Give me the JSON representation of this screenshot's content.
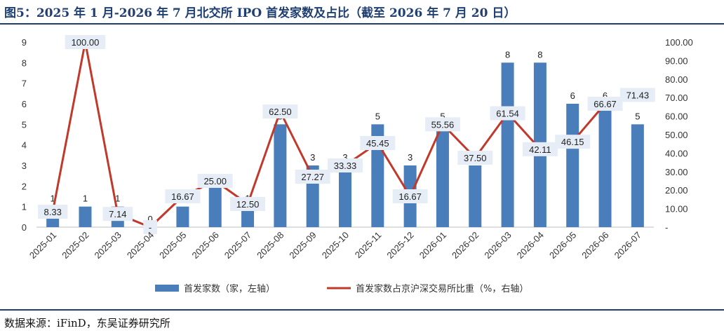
{
  "figure": {
    "title": "图5：2025 年 1 月-2026 年 7 月北交所 IPO 首发家数及占比（截至 2026 年 7 月 20 日）",
    "source": "数据来源：iFinD，东吴证券研究所"
  },
  "colors": {
    "bar": "#4a7ebb",
    "line": "#c0392b",
    "label_bg": "#e6edf6",
    "rule": "#1f3f73"
  },
  "chart_data": {
    "type": "bar+line",
    "title": "",
    "categories": [
      "2025-01",
      "2025-02",
      "2025-03",
      "2025-04",
      "2025-05",
      "2025-06",
      "2025-07",
      "2025-08",
      "2025-09",
      "2025-10",
      "2025-11",
      "2025-12",
      "2026-01",
      "2026-02",
      "2026-03",
      "2026-04",
      "2026-05",
      "2026-06",
      "2026-07"
    ],
    "series": [
      {
        "name": "首发家数（家，左轴）",
        "type": "bar",
        "axis": "left",
        "values": [
          1,
          1,
          1,
          0,
          1,
          2,
          1,
          5,
          3,
          3,
          5,
          3,
          5,
          3,
          8,
          8,
          6,
          6,
          5
        ],
        "labels": [
          "1",
          "1",
          "1",
          "0",
          "1",
          "2",
          "1",
          "5",
          "3",
          "3",
          "5",
          "3",
          "5",
          "3",
          "8",
          "8",
          "6",
          "6",
          "5"
        ]
      },
      {
        "name": "首发家数占京沪深交易所比重（%，右轴）",
        "type": "line",
        "axis": "right",
        "values": [
          8.33,
          100.0,
          7.14,
          0,
          16.67,
          25.0,
          12.5,
          62.5,
          27.27,
          33.33,
          45.45,
          16.67,
          55.56,
          37.5,
          61.54,
          42.11,
          46.15,
          66.67,
          71.43
        ],
        "labels": [
          "8.33",
          "100.00",
          "7.14",
          "-",
          "16.67",
          "25.00",
          "12.50",
          "62.50",
          "27.27",
          "33.33",
          "45.45",
          "16.67",
          "55.56",
          "37.50",
          "61.54",
          "42.11",
          "46.15",
          "66.67",
          "71.43"
        ]
      }
    ],
    "y_left": {
      "min": 0,
      "max": 9,
      "ticks": [
        "0",
        "1",
        "2",
        "3",
        "4",
        "5",
        "6",
        "7",
        "8",
        "9"
      ]
    },
    "y_right": {
      "min": 0,
      "max": 100,
      "ticks": [
        "-",
        "10.00",
        "20.00",
        "30.00",
        "40.00",
        "50.00",
        "60.00",
        "70.00",
        "80.00",
        "90.00",
        "100.00"
      ]
    },
    "legend_position": "bottom",
    "grid": false
  }
}
